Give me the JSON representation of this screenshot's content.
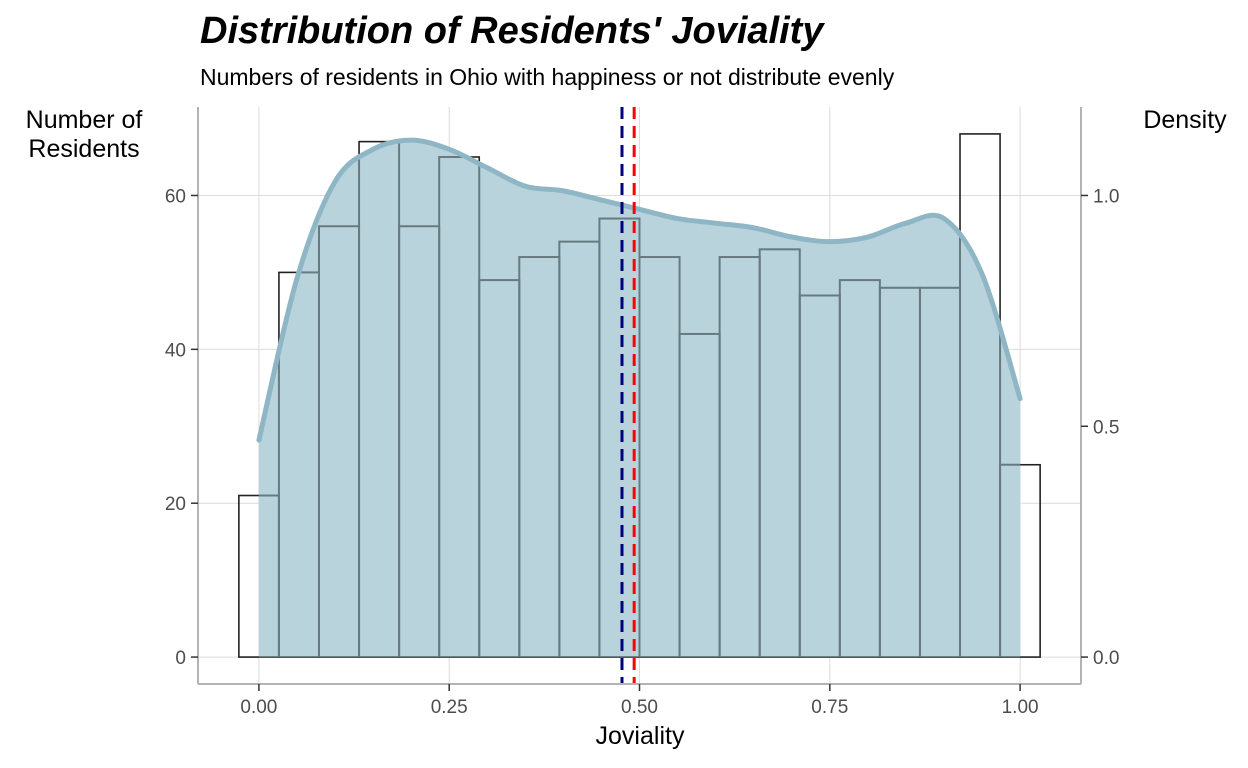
{
  "chart_data": {
    "type": "histogram",
    "title": "Distribution of Residents' Joviality",
    "subtitle": "Numbers of residents in Ohio with happiness or not distribute evenly",
    "xlabel": "Joviality",
    "ylabel_left": "Number of Residents",
    "ylabel_right": "Density",
    "xlim": [
      -0.08,
      1.08
    ],
    "ylim": [
      -3.5,
      71.5
    ],
    "x_ticks": [
      0.0,
      0.25,
      0.5,
      0.75,
      1.0
    ],
    "x_tick_labels": [
      "0.00",
      "0.25",
      "0.50",
      "0.75",
      "1.00"
    ],
    "y_ticks": [
      0,
      20,
      40,
      60
    ],
    "y_tick_labels": [
      "0",
      "20",
      "40",
      "60"
    ],
    "y2_ticks": [
      0.0,
      0.5,
      1.0
    ],
    "y2_tick_labels": [
      "0.0",
      "0.5",
      "1.0"
    ],
    "bins": {
      "width": 0.05263,
      "centers": [
        0.0,
        0.05263,
        0.10526,
        0.15789,
        0.21053,
        0.26316,
        0.31579,
        0.36842,
        0.42105,
        0.47368,
        0.52632,
        0.57895,
        0.63158,
        0.68421,
        0.73684,
        0.78947,
        0.84211,
        0.89474,
        0.94737,
        1.0
      ],
      "counts": [
        21,
        50,
        56,
        67,
        56,
        65,
        49,
        52,
        54,
        57,
        52,
        42,
        52,
        53,
        47,
        49,
        48,
        48,
        68,
        25
      ]
    },
    "density": {
      "x": [
        0.0,
        0.05,
        0.1,
        0.15,
        0.2,
        0.25,
        0.3,
        0.35,
        0.4,
        0.45,
        0.5,
        0.55,
        0.6,
        0.65,
        0.7,
        0.75,
        0.8,
        0.85,
        0.9,
        0.95,
        1.0
      ],
      "y": [
        0.47,
        0.82,
        1.03,
        1.1,
        1.12,
        1.1,
        1.06,
        1.02,
        1.01,
        0.99,
        0.97,
        0.95,
        0.94,
        0.93,
        0.91,
        0.9,
        0.91,
        0.94,
        0.95,
        0.83,
        0.56
      ],
      "fill_color": "#b8d3dc",
      "line_color": "#8fb6c5"
    },
    "vlines": [
      {
        "x": 0.477,
        "color": "#000080",
        "style": "dashed"
      },
      {
        "x": 0.493,
        "color": "#ff0000",
        "style": "dashed"
      }
    ],
    "colors": {
      "bar_outline": "#222222",
      "overlap_outline": "#667a80",
      "grid": "#dcdcdc",
      "axis": "#b3b3b3"
    }
  }
}
